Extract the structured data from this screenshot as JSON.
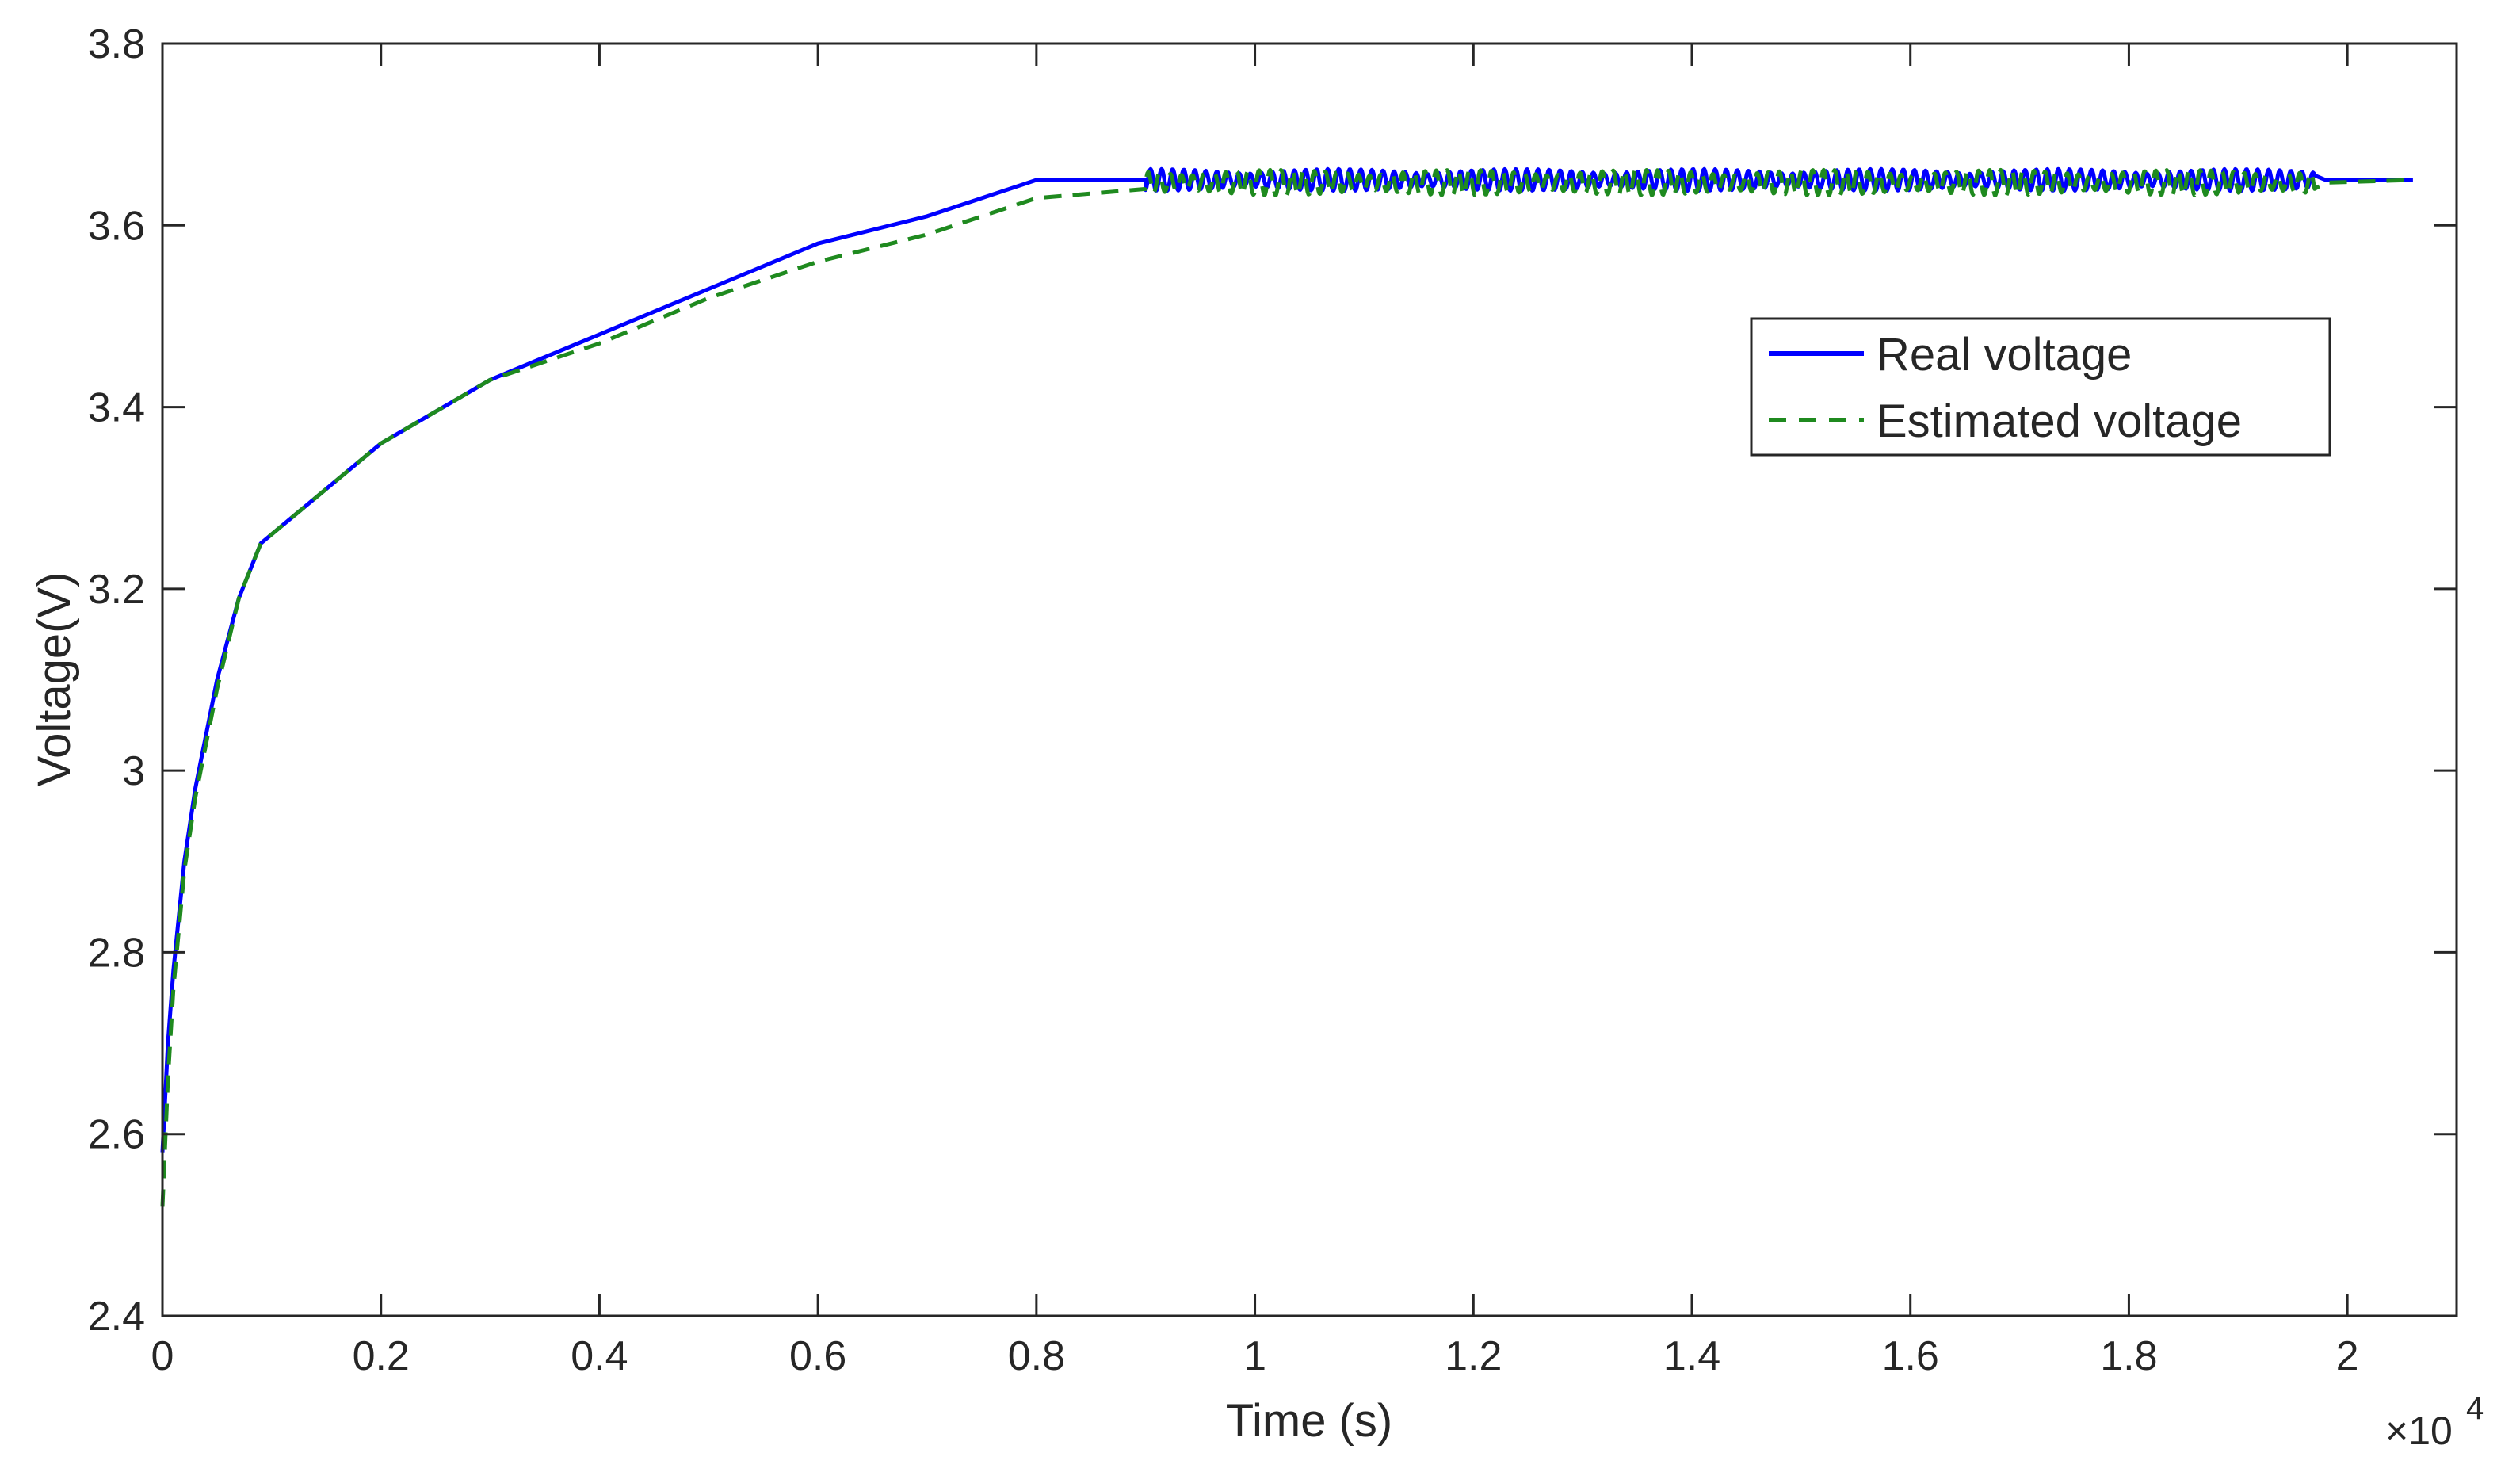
{
  "chart_data": {
    "type": "line",
    "title": "",
    "xlabel": "Time (s)",
    "ylabel": "Voltage(V)",
    "x_exponent_label": "×10",
    "x_exponent_power": "4",
    "x_scale_note": "x tick values are in units of 10^4 s",
    "xlim": [
      0,
      2.1
    ],
    "ylim": [
      2.4,
      3.8
    ],
    "x_ticks": [
      "0",
      "0.2",
      "0.4",
      "0.6",
      "0.8",
      "1",
      "1.2",
      "1.4",
      "1.6",
      "1.8",
      "2"
    ],
    "y_ticks": [
      "2.4",
      "2.6",
      "2.8",
      "3",
      "3.2",
      "3.4",
      "3.6",
      "3.8"
    ],
    "grid": false,
    "legend_position": "upper-right",
    "series": [
      {
        "name": "Real voltage",
        "color": "#0000ff",
        "style": "solid",
        "x": [
          0,
          0.005,
          0.01,
          0.02,
          0.03,
          0.05,
          0.07,
          0.09,
          0.12,
          0.2,
          0.3,
          0.4,
          0.5,
          0.6,
          0.7,
          0.8,
          0.9,
          2.06
        ],
        "y": [
          2.58,
          2.7,
          2.78,
          2.9,
          2.98,
          3.1,
          3.19,
          3.25,
          3.28,
          3.36,
          3.43,
          3.48,
          3.53,
          3.58,
          3.61,
          3.65,
          3.65,
          3.65
        ],
        "oscillation": {
          "from": 0.9,
          "to": 1.97,
          "amplitude": 0.012,
          "center": 3.65
        }
      },
      {
        "name": "Estimated voltage",
        "color": "#1f8a1f",
        "style": "dashed",
        "x": [
          0,
          0.005,
          0.01,
          0.02,
          0.03,
          0.05,
          0.07,
          0.09,
          0.12,
          0.2,
          0.3,
          0.4,
          0.5,
          0.6,
          0.7,
          0.8,
          0.9,
          2.06
        ],
        "y": [
          2.52,
          2.66,
          2.76,
          2.89,
          2.97,
          3.09,
          3.19,
          3.25,
          3.28,
          3.36,
          3.43,
          3.47,
          3.52,
          3.56,
          3.59,
          3.63,
          3.64,
          3.65
        ],
        "oscillation": {
          "from": 0.9,
          "to": 1.97,
          "amplitude": 0.014,
          "center": 3.647
        }
      }
    ]
  }
}
